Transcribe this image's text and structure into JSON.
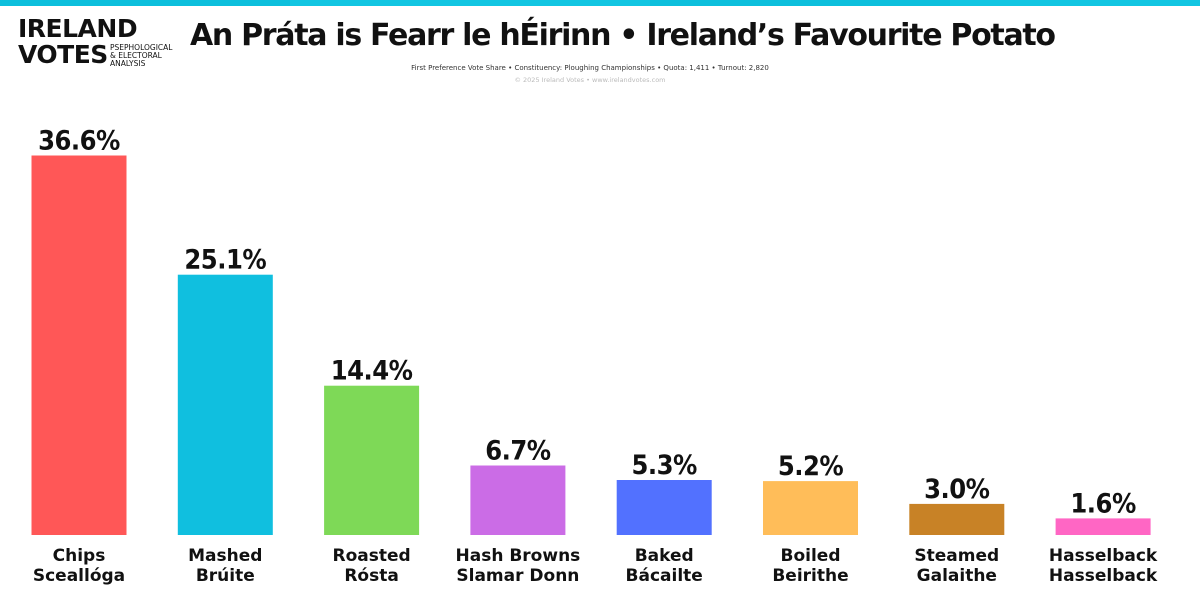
{
  "logo": {
    "line1": "IRELAND",
    "line2": "VOTES",
    "tagline": [
      "PSEPHOLOGICAL",
      "& ELECTORAL",
      "ANALYSIS"
    ]
  },
  "header": {
    "title": "An Práta is Fearr le hÉirinn • Ireland’s Favourite Potato",
    "subtitle": "First Preference Vote Share • Constituency: Ploughing Championships • Quota: 1,411 • Turnout: 2,820",
    "copyright": "© 2025 Ireland Votes • www.irelandvotes.com"
  },
  "stripe_colors": [
    "#0dbfdc",
    "#12c6e2",
    "#0dbfdc",
    "#12c6e2"
  ],
  "chart_data": {
    "type": "bar",
    "title": "An Práta is Fearr le hÉirinn • Ireland’s Favourite Potato",
    "xlabel": "",
    "ylabel": "",
    "ylim": [
      0,
      40
    ],
    "grid": false,
    "legend": "none",
    "categories": [
      [
        "Chips",
        "Sceallóga"
      ],
      [
        "Mashed",
        "Brúite"
      ],
      [
        "Roasted",
        "Rósta"
      ],
      [
        "Hash Browns",
        "Slamar Donn"
      ],
      [
        "Baked",
        "Bácailte"
      ],
      [
        "Boiled",
        "Beirithe"
      ],
      [
        "Steamed",
        "Galaithe"
      ],
      [
        "Hasselback",
        "Hasselback"
      ]
    ],
    "values": [
      36.6,
      25.1,
      14.4,
      6.7,
      5.3,
      5.2,
      3.0,
      1.6
    ],
    "value_labels": [
      "36.6%",
      "25.1%",
      "14.4%",
      "6.7%",
      "5.3%",
      "5.2%",
      "3.0%",
      "1.6%"
    ],
    "colors": [
      "#ff5757",
      "#10bfdf",
      "#7ed957",
      "#cb6ce6",
      "#5271ff",
      "#ffbd59",
      "#c88226",
      "#ff66c4"
    ]
  }
}
